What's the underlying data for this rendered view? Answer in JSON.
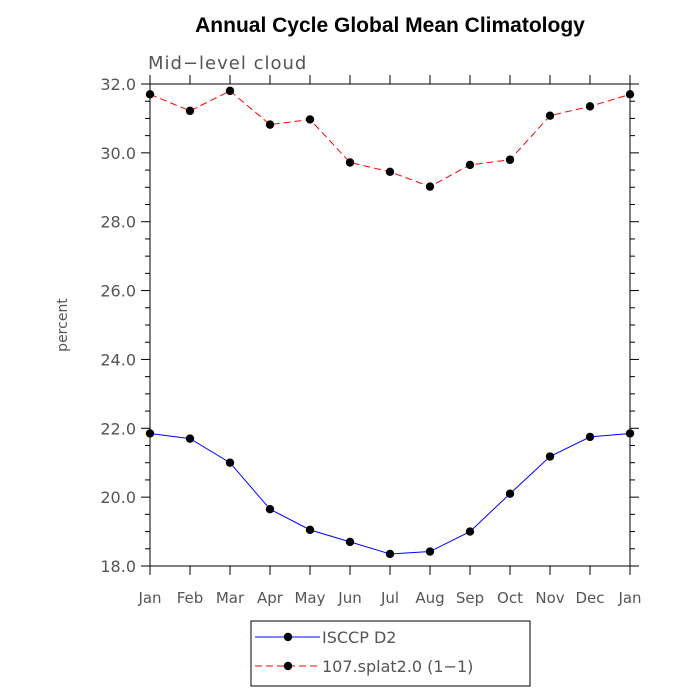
{
  "chart_data": {
    "type": "line",
    "title": "Annual Cycle Global Mean Climatology",
    "subtitle": "Mid−level cloud",
    "xlabel": "",
    "ylabel": "percent",
    "categories": [
      "Jan",
      "Feb",
      "Mar",
      "Apr",
      "May",
      "Jun",
      "Jul",
      "Aug",
      "Sep",
      "Oct",
      "Nov",
      "Dec",
      "Jan"
    ],
    "ylim": [
      18.0,
      32.0
    ],
    "yticks": [
      "18.0",
      "20.0",
      "22.0",
      "24.0",
      "26.0",
      "28.0",
      "30.0",
      "32.0"
    ],
    "grid": false,
    "legend_position": "bottom-center",
    "series": [
      {
        "name": "ISCCP D2",
        "color": "#0000ff",
        "line_style": "solid",
        "values": [
          21.85,
          21.7,
          21.0,
          19.65,
          19.05,
          18.7,
          18.35,
          18.42,
          19.0,
          20.1,
          21.18,
          21.75,
          21.85
        ]
      },
      {
        "name": "107.splat2.0 (1−1)",
        "color": "#ff0000",
        "line_style": "dashed",
        "values": [
          31.7,
          31.22,
          31.8,
          30.82,
          30.97,
          29.72,
          29.45,
          29.02,
          29.65,
          29.8,
          31.08,
          31.35,
          31.7
        ]
      }
    ]
  }
}
